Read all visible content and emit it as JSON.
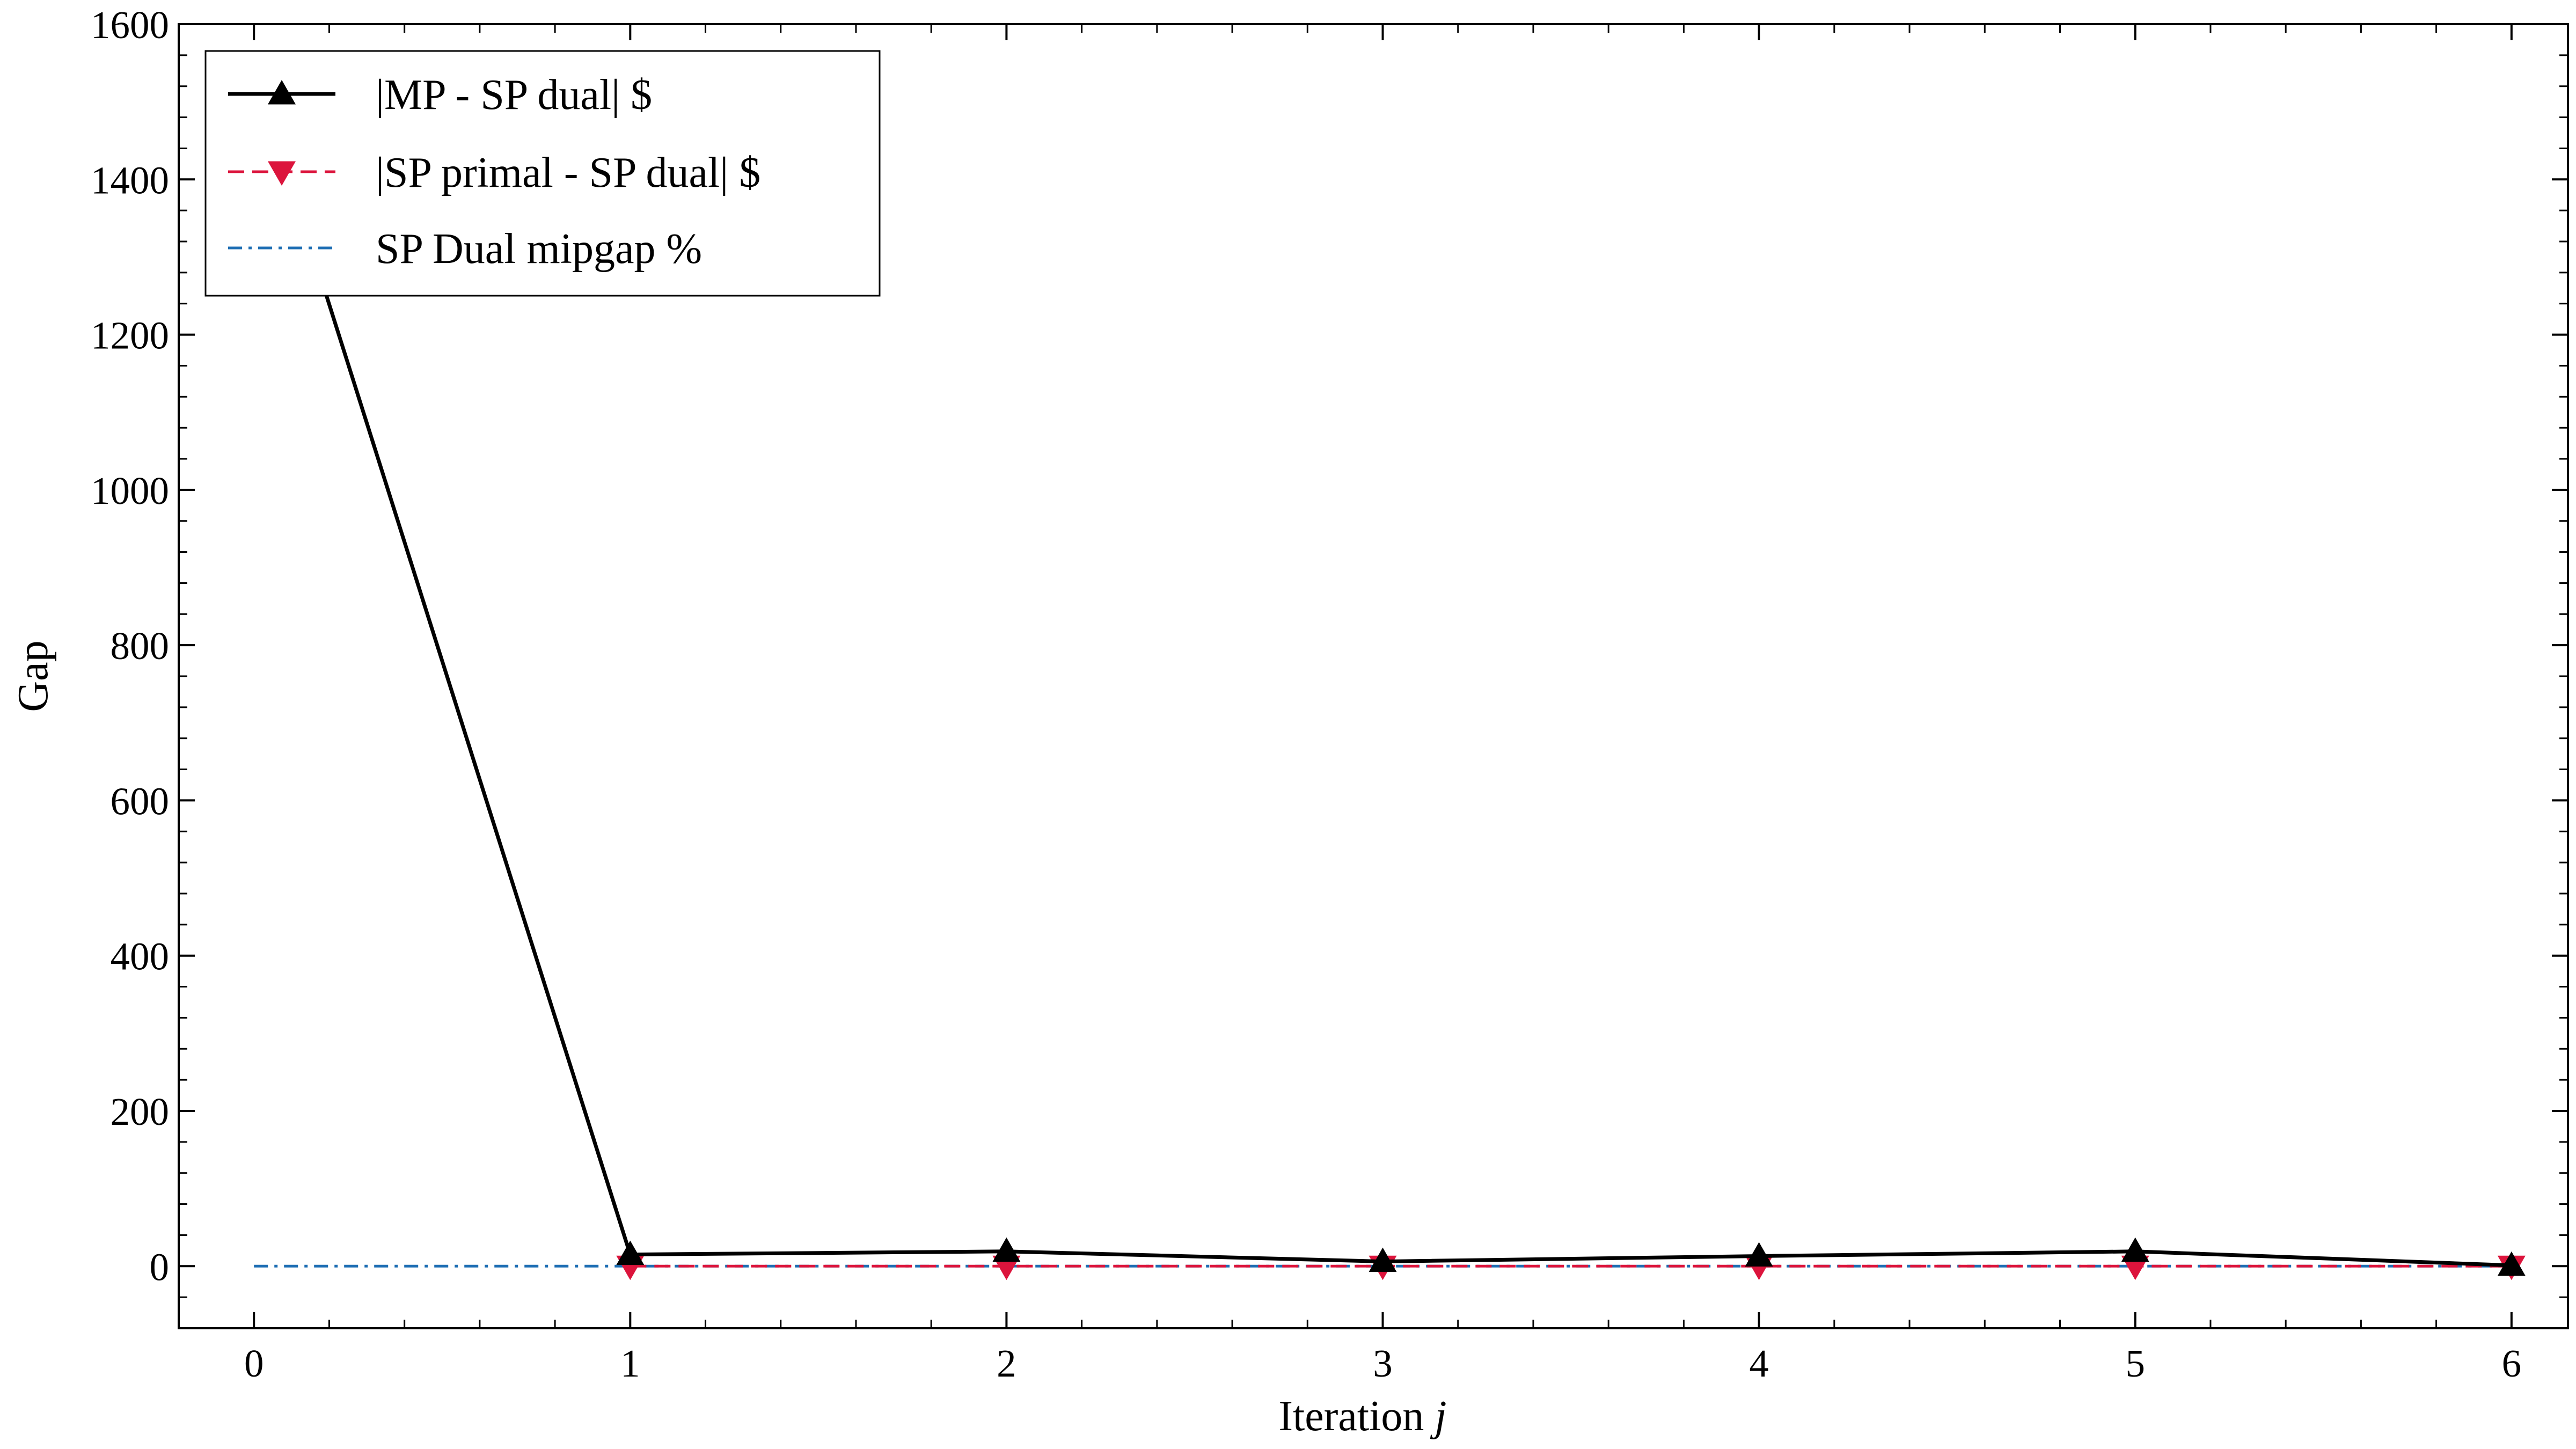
{
  "chart_data": {
    "type": "line",
    "title": "",
    "xlabel": "Iteration",
    "xlabel_var": "j",
    "ylabel": "Gap",
    "xlim": [
      -0.2,
      6.15
    ],
    "ylim": [
      -80,
      1600
    ],
    "xticks": [
      0,
      1,
      2,
      3,
      4,
      5,
      6
    ],
    "yticks": [
      0,
      200,
      400,
      600,
      800,
      1000,
      1200,
      1400,
      1600
    ],
    "grid": false,
    "legend": {
      "location": "top-left"
    },
    "series": [
      {
        "name": "|MP - SP dual| $",
        "color": "#000000",
        "line_style": "solid",
        "marker": "triangle-up",
        "x": [
          0,
          1,
          2,
          3,
          4,
          5,
          6
        ],
        "y": [
          1545,
          15,
          19,
          6,
          13,
          19,
          1
        ]
      },
      {
        "name": "|SP primal - SP dual| $",
        "color": "#dc143c",
        "line_style": "dashed",
        "marker": "triangle-down",
        "x": [
          1,
          2,
          3,
          4,
          5,
          6
        ],
        "y": [
          0,
          0,
          0,
          0,
          0,
          0
        ]
      },
      {
        "name": "SP Dual mipgap %",
        "color": "#1f6fb4",
        "line_style": "dashdot",
        "marker": "none",
        "x": [
          0,
          1,
          2,
          3,
          4,
          5,
          6
        ],
        "y": [
          0,
          0,
          0,
          0,
          0,
          0,
          0
        ]
      }
    ]
  }
}
